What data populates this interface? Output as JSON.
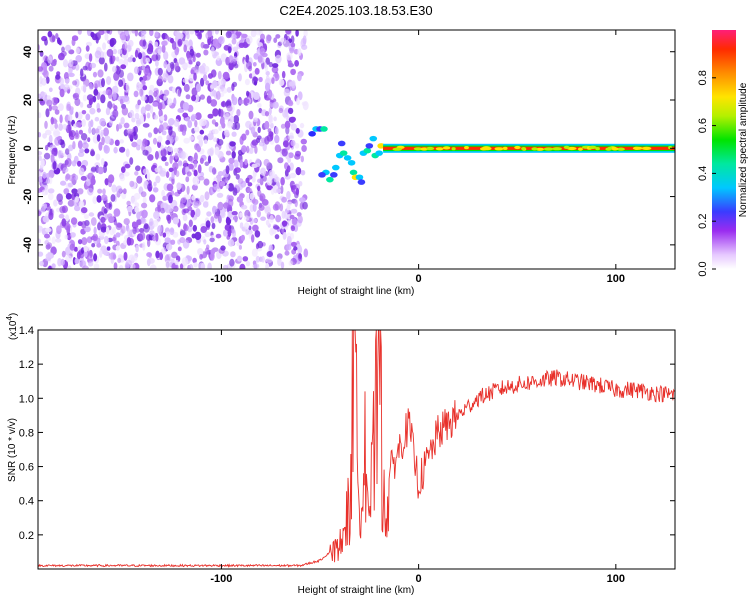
{
  "title": "C2E4.2025.103.18.53.E30",
  "chart_data": [
    {
      "type": "heatmap",
      "xlabel": "Height of straight line (km)",
      "ylabel": "Frequency (Hz)",
      "xlim": [
        -193,
        130
      ],
      "ylim": [
        -50,
        49
      ],
      "xticks": [
        -100,
        0,
        100
      ],
      "yticks": [
        -40,
        -20,
        0,
        20,
        40
      ],
      "grid": false,
      "colorbar": {
        "label": "Normalized spectral amplitude",
        "range": [
          0.0,
          1.0
        ],
        "ticks": [
          0.0,
          0.2,
          0.4,
          0.6,
          0.8
        ],
        "tick_labels": [
          "0.0",
          "0.2",
          "0.4",
          "0.6",
          "0.8"
        ]
      },
      "features": {
        "noise_region_x": [
          -193,
          -57
        ],
        "noise_amplitude_range": [
          0.05,
          0.2
        ],
        "transition_x": [
          -57,
          -18
        ],
        "signal_line_x": [
          -18,
          130
        ],
        "signal_frequency": 0,
        "signal_amplitude": 1.0
      }
    },
    {
      "type": "line",
      "xlabel": "Height of straight line (km)",
      "ylabel": "SNR (10 * v/v)",
      "y_scale_label": "(x10",
      "y_scale_exponent": "4",
      "xlim": [
        -193,
        130
      ],
      "ylim": [
        0,
        1.4
      ],
      "xticks": [
        -100,
        0,
        100
      ],
      "yticks": [
        0.2,
        0.4,
        0.6,
        0.8,
        1.0,
        1.2,
        1.4
      ],
      "ytick_labels": [
        "0.2",
        "0.4",
        "0.6",
        "0.8",
        "1.0",
        "1.2",
        "1.4"
      ],
      "grid": false,
      "series": [
        {
          "color": "#e8302a",
          "x": [
            -193,
            -150,
            -100,
            -60,
            -50,
            -40,
            -35,
            -33,
            -30,
            -27,
            -25,
            -22,
            -20,
            -18,
            -15,
            -10,
            -5,
            0,
            10,
            20,
            30,
            40,
            50,
            60,
            70,
            80,
            90,
            100,
            110,
            120,
            130
          ],
          "values": [
            0.02,
            0.02,
            0.02,
            0.02,
            0.05,
            0.15,
            0.4,
            1.28,
            0.5,
            0.9,
            0.35,
            0.85,
            1.4,
            0.45,
            0.55,
            0.7,
            0.85,
            0.5,
            0.8,
            0.9,
            1.0,
            1.05,
            1.08,
            1.1,
            1.12,
            1.1,
            1.08,
            1.05,
            1.05,
            1.03,
            1.02
          ]
        }
      ]
    }
  ]
}
